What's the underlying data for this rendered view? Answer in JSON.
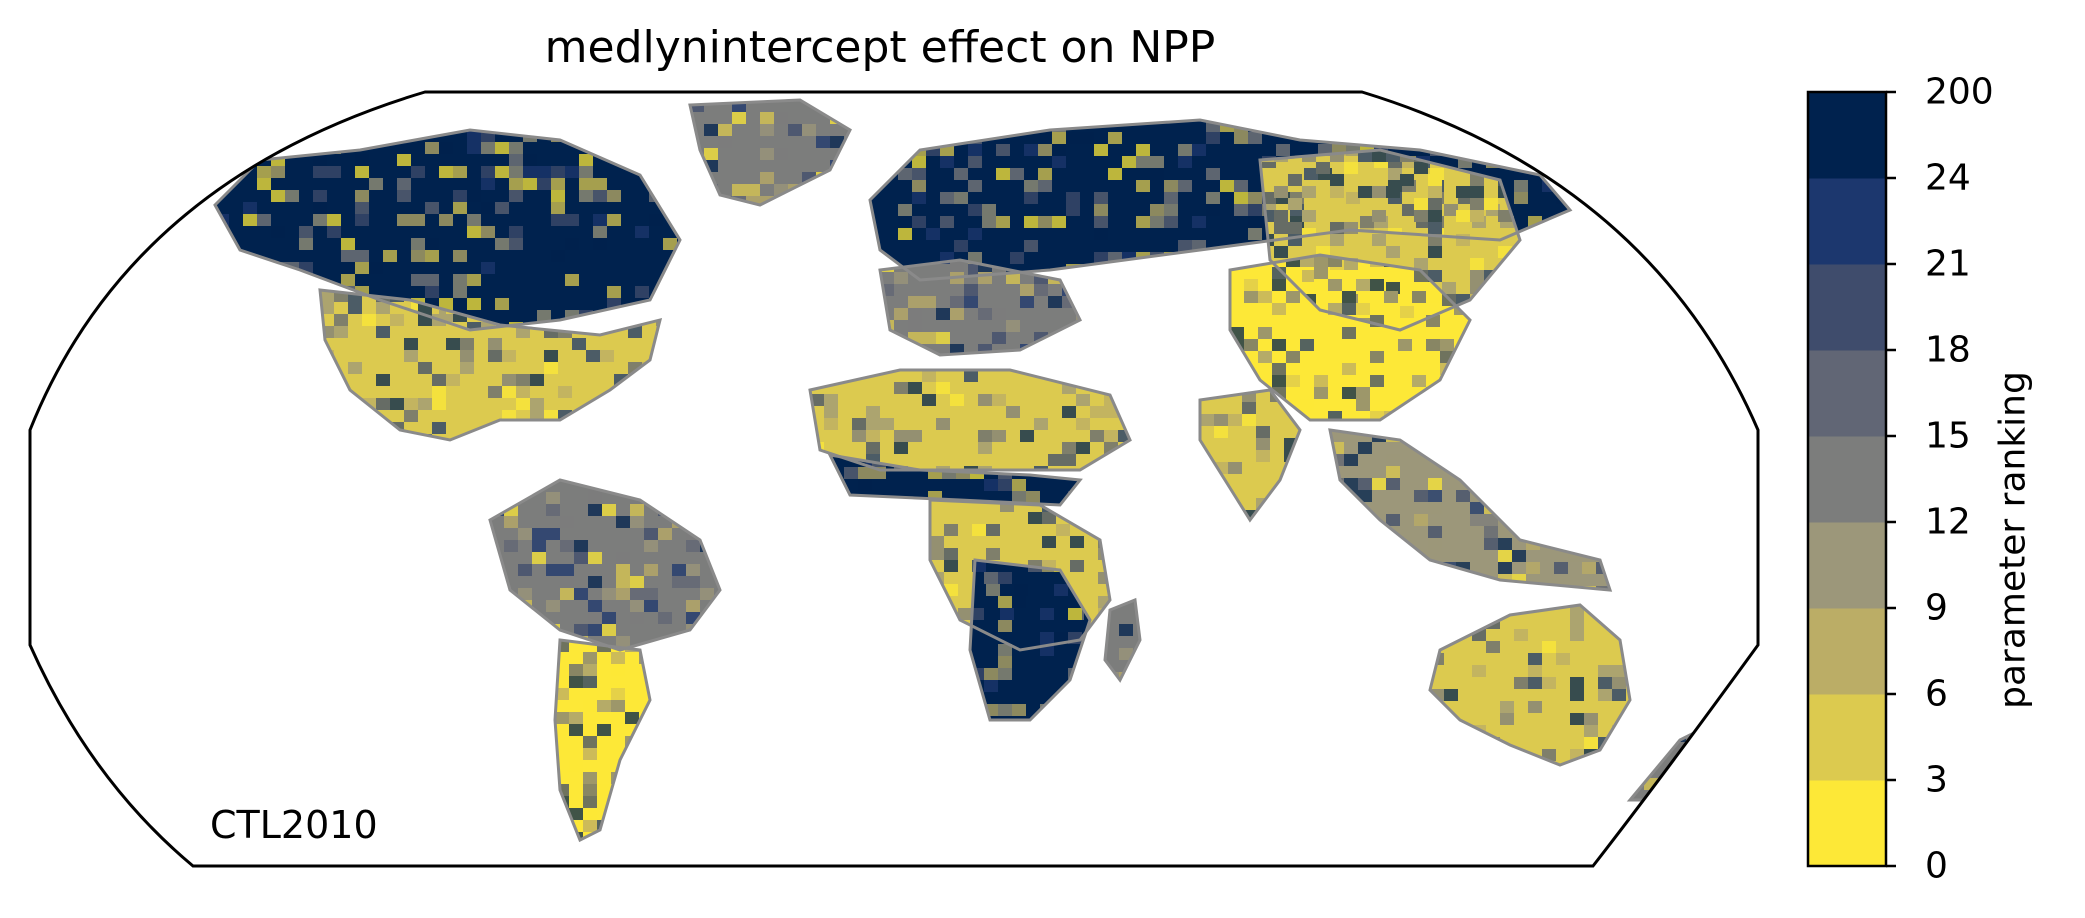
{
  "figure": {
    "title": "medlynintercept effect on NPP",
    "run_label": "CTL2010"
  },
  "colorbar": {
    "label": "parameter ranking",
    "ticks": [
      "0",
      "3",
      "6",
      "9",
      "12",
      "15",
      "18",
      "21",
      "24",
      "200"
    ],
    "bins": [
      {
        "from": "0",
        "to": "3",
        "color": "#FDE837"
      },
      {
        "from": "3",
        "to": "6",
        "color": "#DCCA4F"
      },
      {
        "from": "6",
        "to": "9",
        "color": "#BBAD66"
      },
      {
        "from": "9",
        "to": "12",
        "color": "#9C977A"
      },
      {
        "from": "12",
        "to": "15",
        "color": "#7C7D7C"
      },
      {
        "from": "15",
        "to": "18",
        "color": "#616675"
      },
      {
        "from": "18",
        "to": "21",
        "color": "#3F4C6C"
      },
      {
        "from": "21",
        "to": "24",
        "color": "#1C376E"
      },
      {
        "from": "24",
        "to": "200",
        "color": "#00224E"
      }
    ]
  },
  "map": {
    "projection": "robinson",
    "coastline_color": "#8A8A8A",
    "ocean_color": "#FFFFFF",
    "regions": [
      {
        "name": "Canada-Alaska",
        "class": "24-200"
      },
      {
        "name": "Greenland",
        "class": "12-15"
      },
      {
        "name": "USA",
        "class": "3-6"
      },
      {
        "name": "Amazon",
        "class": "12-15"
      },
      {
        "name": "Southern South America",
        "class": "0-3"
      },
      {
        "name": "Scandinavia-Russia",
        "class": "24-200"
      },
      {
        "name": "Europe",
        "class": "12-15"
      },
      {
        "name": "Sahara",
        "class": "3-6"
      },
      {
        "name": "Sahel band",
        "class": "24-200"
      },
      {
        "name": "Central Africa",
        "class": "3-6"
      },
      {
        "name": "Southern Africa",
        "class": "24-200"
      },
      {
        "name": "Madagascar",
        "class": "12-15"
      },
      {
        "name": "Siberia",
        "class": "3-6"
      },
      {
        "name": "China",
        "class": "0-3"
      },
      {
        "name": "India",
        "class": "3-6"
      },
      {
        "name": "Southeast Asia",
        "class": "9-12"
      },
      {
        "name": "Australia",
        "class": "3-6"
      },
      {
        "name": "New Zealand",
        "class": "12-15"
      }
    ]
  }
}
